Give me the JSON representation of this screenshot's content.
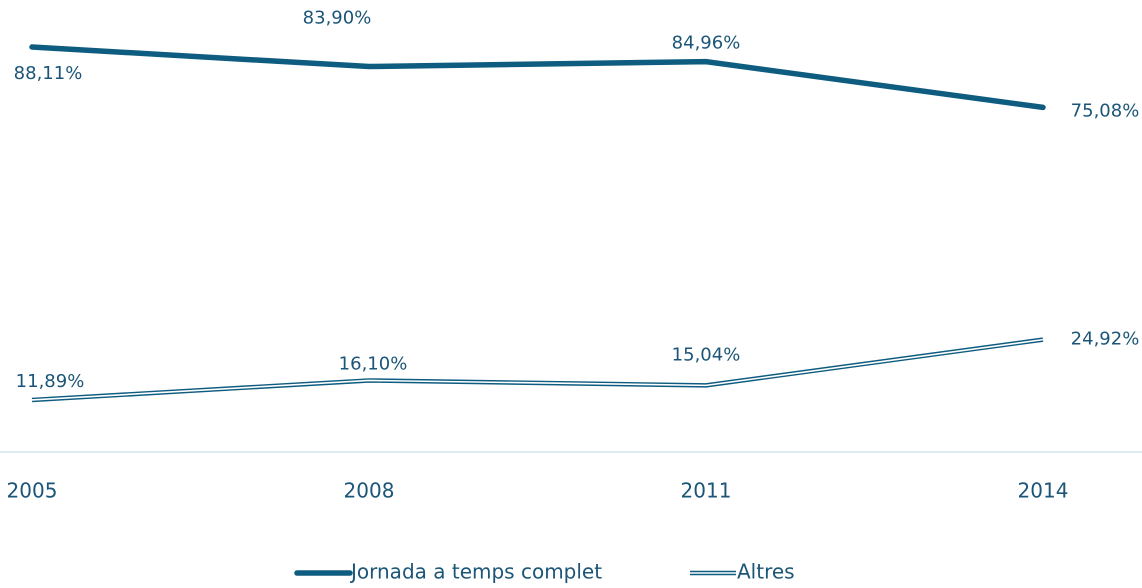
{
  "chart_data": {
    "type": "line",
    "categories": [
      "2005",
      "2008",
      "2011",
      "2014"
    ],
    "series": [
      {
        "name": "Jornada a temps complet",
        "color": "#0e5c80",
        "style": "solid",
        "values": [
          88.11,
          83.9,
          84.96,
          75.08
        ],
        "value_labels": [
          "88,11%",
          "83,90%",
          "84,96%",
          "75,08%"
        ]
      },
      {
        "name": "Altres",
        "color": "#0e5c80",
        "style": "double",
        "values": [
          11.89,
          16.1,
          15.04,
          24.92
        ],
        "value_labels": [
          "11,89%",
          "16,10%",
          "15,04%",
          "24,92%"
        ]
      }
    ],
    "ylim": [
      0,
      100
    ],
    "grid": false,
    "legend": "bottom"
  }
}
